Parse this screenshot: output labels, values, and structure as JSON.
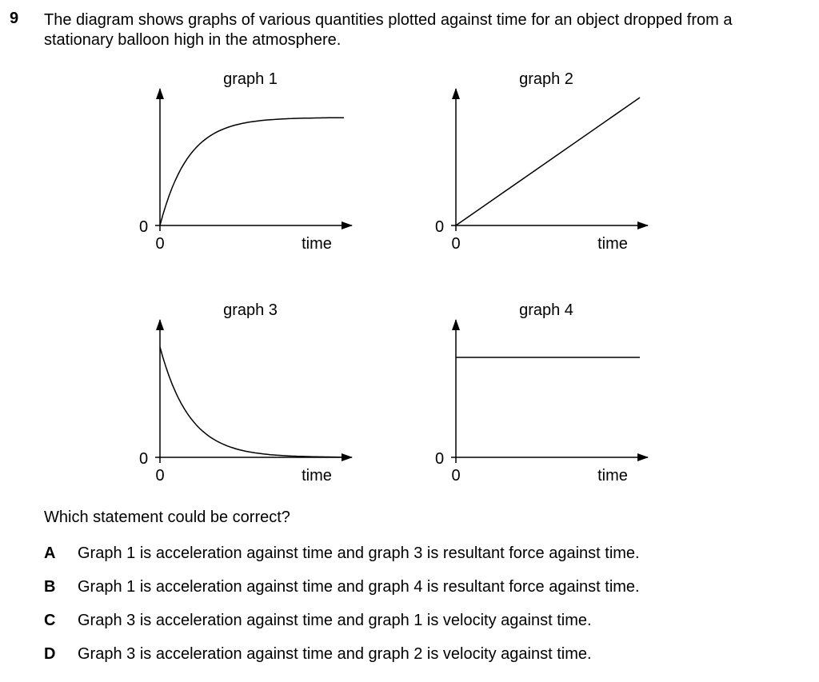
{
  "question": {
    "number": "9",
    "stem_lines": [
      "The diagram shows graphs of various quantities plotted against time for an object dropped from a",
      "stationary balloon high in the atmosphere."
    ],
    "prompt": "Which statement could be correct?"
  },
  "chart_data": [
    {
      "type": "line",
      "title": "graph 1",
      "xlabel": "time",
      "ylabel": "",
      "origin_x_label": "0",
      "origin_y_label": "0",
      "shape": "rises from zero and levels off (exponential approach)",
      "x": [
        0,
        0.2,
        0.4,
        0.6,
        0.8,
        1.0
      ],
      "y": [
        0,
        0.74,
        0.93,
        0.98,
        0.995,
        1.0
      ]
    },
    {
      "type": "line",
      "title": "graph 2",
      "xlabel": "time",
      "ylabel": "",
      "origin_x_label": "0",
      "origin_y_label": "0",
      "shape": "straight line through origin",
      "x": [
        0,
        1
      ],
      "y": [
        0,
        1
      ]
    },
    {
      "type": "line",
      "title": "graph 3",
      "xlabel": "time",
      "ylabel": "",
      "origin_x_label": "0",
      "origin_y_label": "0",
      "shape": "falls from a maximum towards zero (exponential decay)",
      "x": [
        0,
        0.2,
        0.4,
        0.6,
        0.8,
        1.0
      ],
      "y": [
        1.0,
        0.3,
        0.09,
        0.03,
        0.01,
        0.0
      ]
    },
    {
      "type": "line",
      "title": "graph 4",
      "xlabel": "time",
      "ylabel": "",
      "origin_x_label": "0",
      "origin_y_label": "0",
      "shape": "constant non-zero value",
      "x": [
        0,
        1
      ],
      "y": [
        1,
        1
      ]
    }
  ],
  "options": [
    {
      "letter": "A",
      "text": "Graph 1 is acceleration against time and graph 3 is resultant force against time."
    },
    {
      "letter": "B",
      "text": "Graph 1 is acceleration against time and graph 4 is resultant force against time."
    },
    {
      "letter": "C",
      "text": "Graph 3 is acceleration against time and graph 1 is velocity against time."
    },
    {
      "letter": "D",
      "text": "Graph 3 is acceleration against time and graph 2 is velocity against time."
    }
  ]
}
